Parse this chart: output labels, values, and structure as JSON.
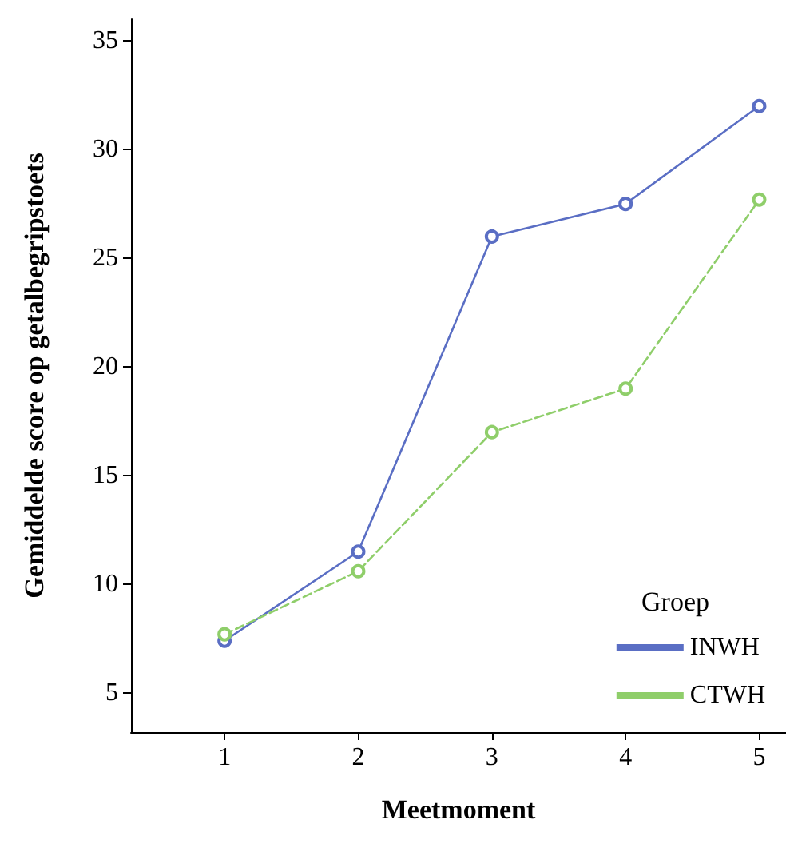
{
  "chart_data": {
    "type": "line",
    "xlabel": "Meetmoment",
    "ylabel": "Gemiddelde score op getalbegripstoets",
    "legend_title": "Groep",
    "legend": "bottom right",
    "marker": "circle",
    "grid": false,
    "x": [
      1,
      2,
      3,
      4,
      5
    ],
    "xlim": [
      0.3,
      5.2
    ],
    "xticks": [
      1,
      2,
      3,
      4,
      5
    ],
    "ylim": [
      3.2,
      36
    ],
    "yticks": [
      5,
      10,
      15,
      20,
      25,
      30,
      35
    ],
    "series": [
      {
        "name": "INWH",
        "color": "#5a6ec4",
        "line_style": "solid",
        "values": [
          7.4,
          11.5,
          26.0,
          27.5,
          32.0
        ]
      },
      {
        "name": "CTWH",
        "color": "#8fce6a",
        "line_style": "dashed",
        "values": [
          7.7,
          10.6,
          17.0,
          19.0,
          27.7
        ]
      }
    ]
  }
}
